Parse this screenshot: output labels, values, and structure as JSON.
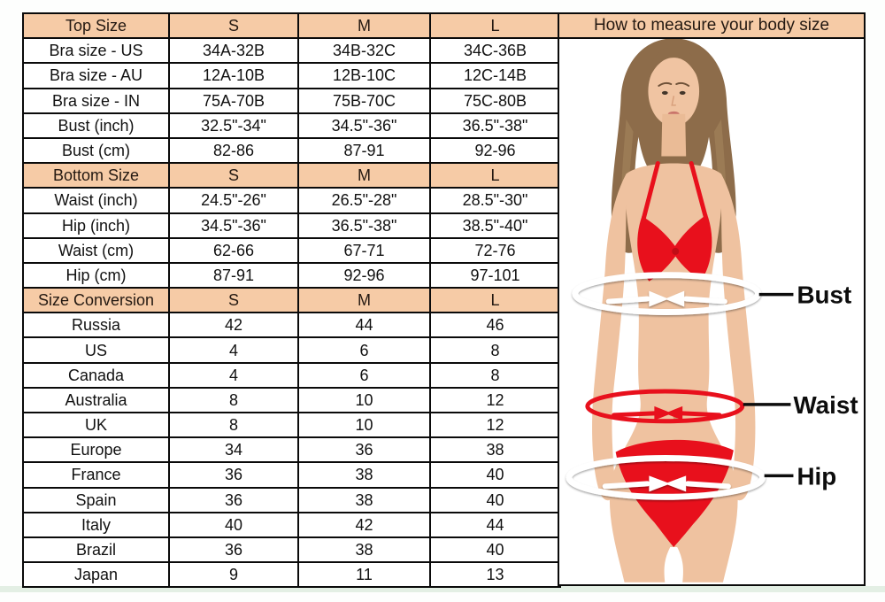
{
  "table": {
    "columns": [
      "S",
      "M",
      "L"
    ],
    "sections": [
      {
        "header": "Top Size",
        "rows": [
          {
            "label": "Bra size - US",
            "values": [
              "34A-32B",
              "34B-32C",
              "34C-36B"
            ]
          },
          {
            "label": "Bra size - AU",
            "values": [
              "12A-10B",
              "12B-10C",
              "12C-14B"
            ]
          },
          {
            "label": "Bra size - IN",
            "values": [
              "75A-70B",
              "75B-70C",
              "75C-80B"
            ]
          },
          {
            "label": "Bust (inch)",
            "values": [
              "32.5\"-34\"",
              "34.5\"-36\"",
              "36.5\"-38\""
            ]
          },
          {
            "label": "Bust (cm)",
            "values": [
              "82-86",
              "87-91",
              "92-96"
            ]
          }
        ]
      },
      {
        "header": "Bottom Size",
        "rows": [
          {
            "label": "Waist (inch)",
            "values": [
              "24.5\"-26\"",
              "26.5\"-28\"",
              "28.5\"-30\""
            ]
          },
          {
            "label": "Hip (inch)",
            "values": [
              "34.5\"-36\"",
              "36.5\"-38\"",
              "38.5\"-40\""
            ]
          },
          {
            "label": "Waist (cm)",
            "values": [
              "62-66",
              "67-71",
              "72-76"
            ]
          },
          {
            "label": "Hip (cm)",
            "values": [
              "87-91",
              "92-96",
              "97-101"
            ]
          }
        ]
      },
      {
        "header": "Size Conversion",
        "rows": [
          {
            "label": "Russia",
            "values": [
              "42",
              "44",
              "46"
            ]
          },
          {
            "label": "US",
            "values": [
              "4",
              "6",
              "8"
            ]
          },
          {
            "label": "Canada",
            "values": [
              "4",
              "6",
              "8"
            ]
          },
          {
            "label": "Australia",
            "values": [
              "8",
              "10",
              "12"
            ]
          },
          {
            "label": "UK",
            "values": [
              "8",
              "10",
              "12"
            ]
          },
          {
            "label": "Europe",
            "values": [
              "34",
              "36",
              "38"
            ]
          },
          {
            "label": "France",
            "values": [
              "36",
              "38",
              "40"
            ]
          },
          {
            "label": "Spain",
            "values": [
              "36",
              "38",
              "40"
            ]
          },
          {
            "label": "Italy",
            "values": [
              "40",
              "42",
              "44"
            ]
          },
          {
            "label": "Brazil",
            "values": [
              "36",
              "38",
              "40"
            ]
          },
          {
            "label": "Japan",
            "values": [
              "9",
              "11",
              "13"
            ]
          }
        ]
      }
    ]
  },
  "measure_panel": {
    "title": "How to measure your body size",
    "labels": {
      "bust": "Bust",
      "waist": "Waist",
      "hip": "Hip"
    }
  },
  "colors": {
    "header_bg": "#f6cba6",
    "table_border": "#0a0a0a",
    "bikini_red": "#e8101c",
    "skin": "#efc2a0",
    "hair": "#8d6c4a",
    "annotation_text": "#0d0d0d",
    "measure_ring_white": "#ffffff"
  }
}
